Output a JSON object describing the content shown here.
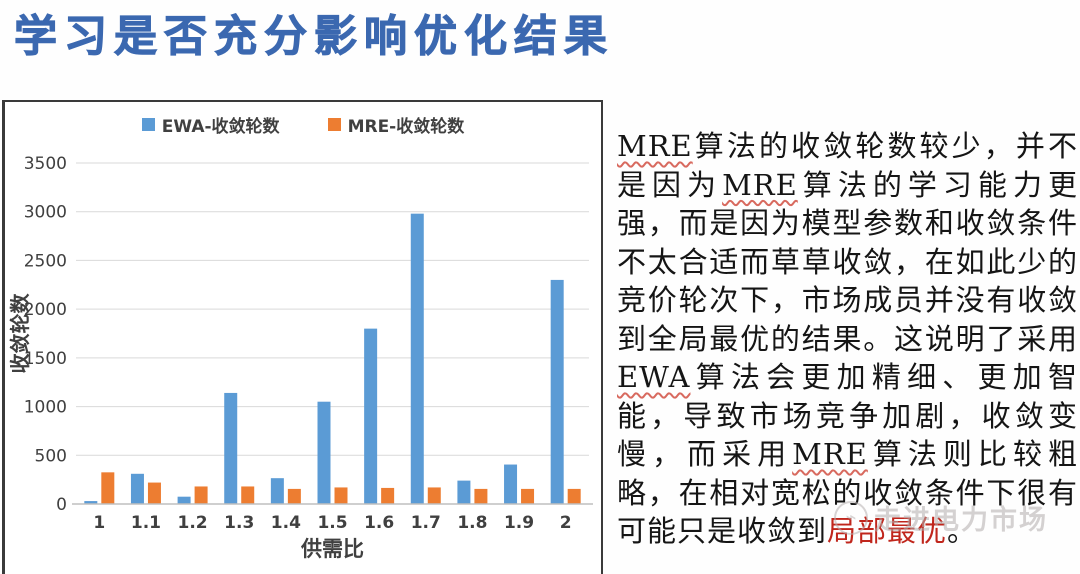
{
  "slide": {
    "title": "学习是否充分影响优化结果",
    "title_color": "#3b68b0"
  },
  "chart_data": {
    "type": "bar",
    "title": "",
    "categories": [
      "1",
      "1.1",
      "1.2",
      "1.3",
      "1.4",
      "1.5",
      "1.6",
      "1.7",
      "1.8",
      "1.9",
      "2"
    ],
    "series": [
      {
        "name": "EWA-收敛轮数",
        "color": "#5b9bd5",
        "values": [
          30,
          310,
          75,
          1140,
          265,
          1050,
          1800,
          2980,
          240,
          405,
          2300
        ]
      },
      {
        "name": "MRE-收敛轮数",
        "color": "#ed7d31",
        "values": [
          325,
          220,
          180,
          180,
          155,
          170,
          165,
          170,
          155,
          155,
          155
        ]
      }
    ],
    "xlabel": "供需比",
    "ylabel": "收敛轮数",
    "ylim": [
      0,
      3500
    ],
    "yticks": [
      0,
      500,
      1000,
      1500,
      2000,
      2500,
      3000,
      3500
    ],
    "grid": true,
    "legend_position": "top",
    "axis_text_color": "#404040",
    "gridline_color": "#d9d9d9",
    "axisline_color": "#bfbfbf"
  },
  "commentary": {
    "segments": [
      {
        "text": "MRE",
        "style": "misspell"
      },
      {
        "text": "算法的收敛轮数较少，并不是因为",
        "style": "normal"
      },
      {
        "text": "MRE",
        "style": "misspell"
      },
      {
        "text": "算法的学习能力更强，而是因为模型参数和收敛条件不太合适而草草收敛，在如此少的竞价轮次下，市场成员并没有收敛到全局最优的结果。这说明了采用",
        "style": "normal"
      },
      {
        "text": "EWA",
        "style": "misspell"
      },
      {
        "text": "算法会更加精细、更加智能，导致市场竞争加剧，收敛变慢，而采用",
        "style": "normal"
      },
      {
        "text": "MRE",
        "style": "misspell"
      },
      {
        "text": "算法则比较粗略，在相对宽松的收敛条件下很有可能只是收敛到",
        "style": "normal"
      },
      {
        "text": "局部最优",
        "style": "red"
      },
      {
        "text": "。",
        "style": "normal"
      }
    ],
    "red_color": "#c0261c"
  },
  "watermark": {
    "text": "走进电力市场",
    "logo_glyph": "⌁"
  }
}
